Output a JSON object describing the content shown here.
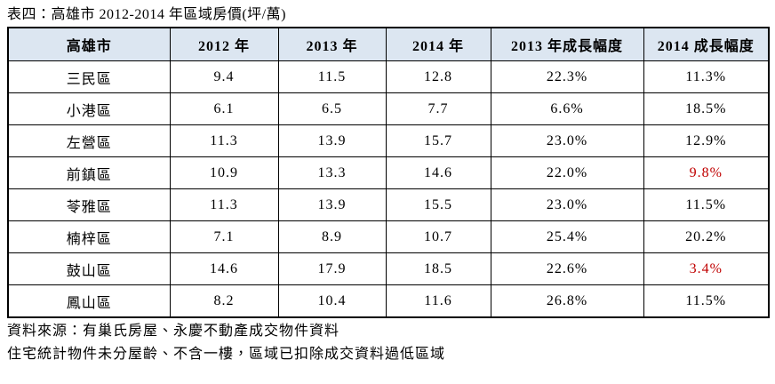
{
  "title": "表四：高雄市 2012-2014 年區域房價(坪/萬)",
  "colors": {
    "header_bg": "#DCE6F1",
    "border": "#000000",
    "text": "#000000",
    "negative_highlight": "#C00000"
  },
  "table": {
    "headers": [
      "高雄市",
      "2012 年",
      "2013 年",
      "2014 年",
      "2013 年成長幅度",
      "2014 成長幅度"
    ],
    "rows": [
      {
        "district": "三民區",
        "y2012": "9.4",
        "y2013": "11.5",
        "y2014": "12.8",
        "g2013": "22.3%",
        "g2014": "11.3%",
        "g2014_negative": false
      },
      {
        "district": "小港區",
        "y2012": "6.1",
        "y2013": "6.5",
        "y2014": "7.7",
        "g2013": "6.6%",
        "g2014": "18.5%",
        "g2014_negative": false
      },
      {
        "district": "左營區",
        "y2012": "11.3",
        "y2013": "13.9",
        "y2014": "15.7",
        "g2013": "23.0%",
        "g2014": "12.9%",
        "g2014_negative": false
      },
      {
        "district": "前鎮區",
        "y2012": "10.9",
        "y2013": "13.3",
        "y2014": "14.6",
        "g2013": "22.0%",
        "g2014": "9.8%",
        "g2014_negative": true
      },
      {
        "district": "苓雅區",
        "y2012": "11.3",
        "y2013": "13.9",
        "y2014": "15.5",
        "g2013": "23.0%",
        "g2014": "11.5%",
        "g2014_negative": false
      },
      {
        "district": "楠梓區",
        "y2012": "7.1",
        "y2013": "8.9",
        "y2014": "10.7",
        "g2013": "25.4%",
        "g2014": "20.2%",
        "g2014_negative": false
      },
      {
        "district": "鼓山區",
        "y2012": "14.6",
        "y2013": "17.9",
        "y2014": "18.5",
        "g2013": "22.6%",
        "g2014": "3.4%",
        "g2014_negative": true
      },
      {
        "district": "鳳山區",
        "y2012": "8.2",
        "y2013": "10.4",
        "y2014": "11.6",
        "g2013": "26.8%",
        "g2014": "11.5%",
        "g2014_negative": false
      }
    ]
  },
  "footnotes": [
    "資料來源：有巢氏房屋、永慶不動產成交物件資料",
    "住宅統計物件未分屋齡、不含一樓，區域已扣除成交資料過低區域"
  ]
}
